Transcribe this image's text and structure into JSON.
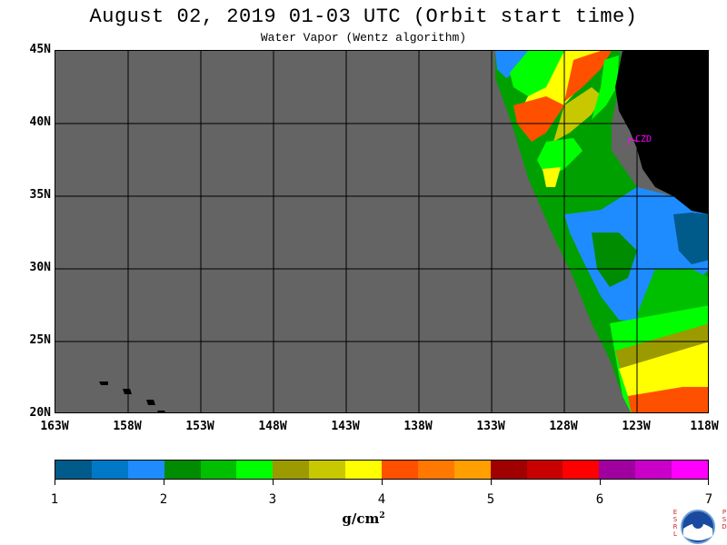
{
  "title": "August 02, 2019  01-03 UTC  (Orbit start time)",
  "subtitle": "Water Vapor (Wentz algorithm)",
  "map": {
    "lat_labels": [
      "45N",
      "40N",
      "35N",
      "30N",
      "25N",
      "20N"
    ],
    "lon_labels": [
      "163W",
      "158W",
      "153W",
      "148W",
      "143W",
      "138W",
      "133W",
      "128W",
      "123W",
      "118W"
    ],
    "station_label": "CZD",
    "no_data_color": "#646464",
    "land_color": "#000000"
  },
  "colorbar": {
    "colors": [
      "#005a8a",
      "#0078c8",
      "#1e8cff",
      "#008c00",
      "#00be00",
      "#00ff00",
      "#9b9b00",
      "#c8c800",
      "#ffff00",
      "#ff5000",
      "#ff7800",
      "#ffa000",
      "#a00000",
      "#c80000",
      "#ff0000",
      "#a000a0",
      "#c800c8",
      "#ff00ff"
    ],
    "tick_labels": [
      "1",
      "2",
      "3",
      "4",
      "5",
      "6",
      "7"
    ],
    "unit_base": "g/cm",
    "unit_exp": "2"
  },
  "logo": {
    "left_letters": "ESRL",
    "right_letters": "PSD",
    "name": "noaa-logo"
  }
}
